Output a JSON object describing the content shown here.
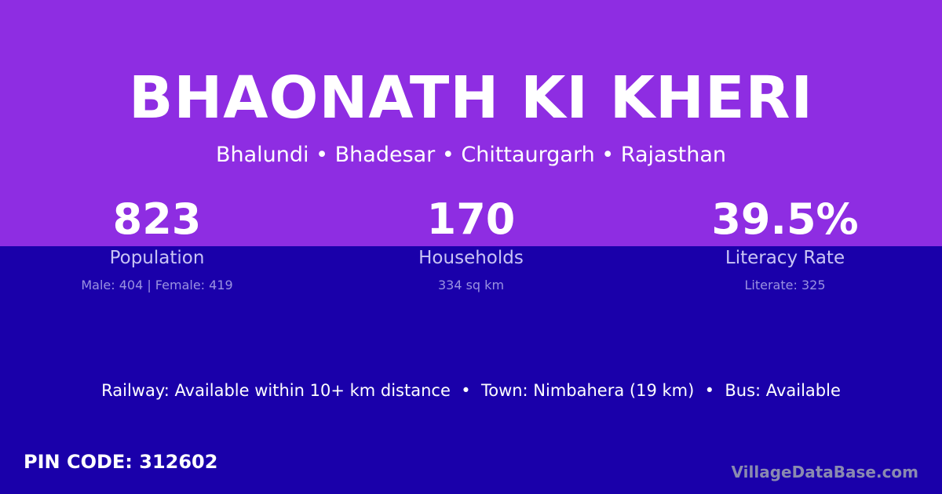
{
  "header": {
    "title": "BHAONATH KI KHERI",
    "location": "Bhalundi • Bhadesar • Chittaurgarh • Rajasthan"
  },
  "stats": [
    {
      "value": "823",
      "label": "Population",
      "detail": "Male: 404 | Female: 419"
    },
    {
      "value": "170",
      "label": "Households",
      "detail": "334 sq km"
    },
    {
      "value": "39.5%",
      "label": "Literacy Rate",
      "detail": "Literate: 325"
    }
  ],
  "facilities": "Railway: Available within 10+ km distance  •  Town: Nimbahera (19 km)  •  Bus: Available",
  "pin_code": "PIN CODE: 312602",
  "brand": "VillageDataBase.com",
  "colors": {
    "top_background": "#8e2de2",
    "bottom_background": "#1a00aa"
  }
}
